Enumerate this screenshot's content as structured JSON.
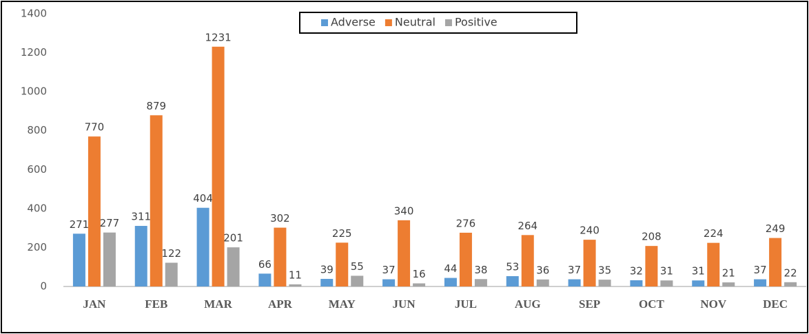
{
  "chart_data": {
    "type": "bar",
    "categories": [
      "JAN",
      "FEB",
      "MAR",
      "APR",
      "MAY",
      "JUN",
      "JUL",
      "AUG",
      "SEP",
      "OCT",
      "NOV",
      "DEC"
    ],
    "series": [
      {
        "name": "Adverse",
        "color": "#5b9bd5",
        "values": [
          271,
          311,
          404,
          66,
          39,
          37,
          44,
          53,
          37,
          32,
          31,
          37
        ]
      },
      {
        "name": "Neutral",
        "color": "#ed7d31",
        "values": [
          770,
          879,
          1231,
          302,
          225,
          340,
          276,
          264,
          240,
          208,
          224,
          249
        ]
      },
      {
        "name": "Positive",
        "color": "#a5a5a5",
        "values": [
          277,
          122,
          201,
          11,
          55,
          16,
          38,
          36,
          35,
          31,
          21,
          22
        ]
      }
    ],
    "ylim": [
      0,
      1400
    ],
    "yticks": [
      0,
      200,
      400,
      600,
      800,
      1000,
      1200,
      1400
    ],
    "grid": false,
    "legend": "top"
  }
}
